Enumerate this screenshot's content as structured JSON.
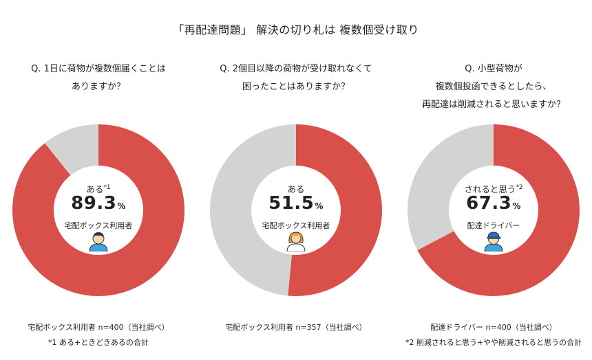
{
  "title": "「再配達問題」 解決の切り札は 複数個受け取り",
  "colors": {
    "primary": "#d9504a",
    "rest": "#d3d3d3"
  },
  "panels": [
    {
      "question": [
        "Q. 1日に荷物が複数個届くことは",
        "ありますか？"
      ],
      "center_label": "ある",
      "center_sup": "*1",
      "value_number": "89.3",
      "value_unit": "%",
      "respondent": "宅配ボックス利用者",
      "icon": "user-boy-icon",
      "note1": "宅配ボックス利用者 n=400（当社調べ）",
      "note2": "*1 ある+ときどきあるの合計"
    },
    {
      "question": [
        "Q. 2個目以降の荷物が受け取れなくて",
        "困ったことはありますか？"
      ],
      "center_label": "ある",
      "center_sup": "",
      "value_number": "51.5",
      "value_unit": "%",
      "respondent": "宅配ボックス利用者",
      "icon": "user-girl-icon",
      "note1": "宅配ボックス利用者 n=357（当社調べ）",
      "note2": ""
    },
    {
      "question": [
        "Q. 小型荷物が",
        "複数個投函できるとしたら、",
        "再配達は削減されると思いますか？"
      ],
      "center_label": "されると思う",
      "center_sup": "*2",
      "value_number": "67.3",
      "value_unit": "%",
      "respondent": "配達ドライバー",
      "icon": "delivery-driver-icon",
      "note1": "配達ドライバー n=400（当社調べ）",
      "note2": "*2 削減されると思う+やや削減されると思うの合計"
    }
  ],
  "chart_data": [
    {
      "type": "pie",
      "categories": [
        "ある",
        ""
      ],
      "values": [
        89.3,
        10.7
      ]
    },
    {
      "type": "pie",
      "categories": [
        "ある",
        ""
      ],
      "values": [
        51.5,
        48.5
      ]
    },
    {
      "type": "pie",
      "categories": [
        "されると思う",
        ""
      ],
      "values": [
        67.3,
        32.7
      ]
    }
  ]
}
